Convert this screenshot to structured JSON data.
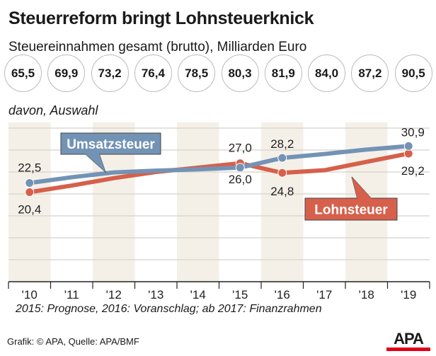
{
  "title": "Steuerreform bringt Lohnsteuerknick",
  "subtitle": "Steuereinnahmen gesamt (brutto), Milliarden Euro",
  "totals": [
    "65,5",
    "69,9",
    "73,2",
    "76,4",
    "78,5",
    "80,3",
    "81,9",
    "84,0",
    "87,2",
    "90,5"
  ],
  "davon": "davon, Auswahl",
  "note": "2015: Prognose, 2016: Voranschlag; ab 2017: Finanzrahmen",
  "credit": "Grafik: © APA, Quelle: APA/BMF",
  "logo": "APA",
  "colors": {
    "umsatz": "#7393b5",
    "lohn": "#d6604b",
    "band": "#f4f0e8",
    "logo_red": "#e2001a"
  },
  "chart_data": {
    "type": "line",
    "categories": [
      "'10",
      "'11",
      "'12",
      "'13",
      "'14",
      "'15",
      "'16",
      "'17",
      "'18",
      "'19"
    ],
    "ylim": [
      0,
      35
    ],
    "grid": true,
    "series": [
      {
        "name": "Umsatzsteuer",
        "values": [
          22.5,
          23.8,
          24.9,
          25.3,
          25.6,
          26.0,
          28.2,
          29.1,
          30.1,
          30.9
        ],
        "labels": [
          {
            "i": 0,
            "text": "22,5"
          },
          {
            "i": 5,
            "text": "26,0"
          },
          {
            "i": 6,
            "text": "28,2"
          },
          {
            "i": 9,
            "text": "30,9"
          }
        ]
      },
      {
        "name": "Lohnsteuer",
        "values": [
          20.4,
          21.9,
          23.6,
          25.0,
          26.0,
          27.0,
          24.8,
          25.4,
          27.3,
          29.2
        ],
        "labels": [
          {
            "i": 0,
            "text": "20,4"
          },
          {
            "i": 5,
            "text": "27,0"
          },
          {
            "i": 6,
            "text": "24,8"
          },
          {
            "i": 9,
            "text": "29,2"
          }
        ]
      }
    ]
  }
}
